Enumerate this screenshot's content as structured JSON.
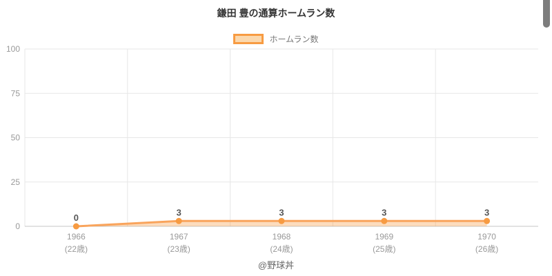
{
  "title": "鎌田 豊の通算ホームラン数",
  "legend": {
    "label": "ホームラン数"
  },
  "footer": "@野球丼",
  "colors": {
    "line": "#f9a45c",
    "marker": "#f79b42",
    "area": "rgba(247,155,66,0.35)",
    "grid": "#e7e7e7",
    "axis": "#c6c6c6",
    "tick_label": "#999999",
    "value_label": "#565656"
  },
  "chart_data": {
    "type": "line",
    "title": "鎌田 豊の通算ホームラン数",
    "series_name": "ホームラン数",
    "categories": [
      "1966",
      "1967",
      "1968",
      "1969",
      "1970"
    ],
    "category_sublabels": [
      "(22歳)",
      "(23歳)",
      "(24歳)",
      "(25歳)",
      "(26歳)"
    ],
    "values": [
      0,
      3,
      3,
      3,
      3
    ],
    "point_labels": [
      "0",
      "3",
      "3",
      "3",
      "3"
    ],
    "xlabel": "",
    "ylabel": "",
    "ylim": [
      0,
      100
    ],
    "yticks": [
      0,
      25,
      50,
      75,
      100
    ],
    "grid": true,
    "area_fill": true,
    "legend_position": "top"
  }
}
